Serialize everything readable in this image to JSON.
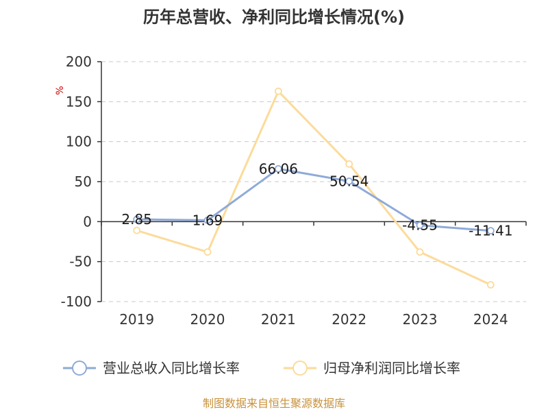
{
  "title": "历年总营收、净利同比增长情况(%)",
  "source": "制图数据来自恒生聚源数据库",
  "chart_data": {
    "type": "line",
    "title": "历年总营收、净利同比增长情况(%)",
    "ylabel": "%",
    "ylim": [
      -100,
      200
    ],
    "yticks": [
      200,
      150,
      100,
      50,
      0,
      -50,
      -100
    ],
    "grid": true,
    "legend_position": "bottom",
    "categories": [
      "2019",
      "2020",
      "2021",
      "2022",
      "2023",
      "2024"
    ],
    "series": [
      {
        "name": "营业总收入同比增长率",
        "color": "#8eaad8",
        "values": [
          2.85,
          1.69,
          66.06,
          50.54,
          -4.55,
          -11.41
        ],
        "labels": [
          "2.85",
          "1.69",
          "66.06",
          "50.54",
          "-4.55",
          "-11.41"
        ]
      },
      {
        "name": "归母净利润同比增长率",
        "color": "#fcdb9a",
        "values": [
          -11,
          -38,
          163,
          72,
          -38,
          -79
        ]
      }
    ]
  }
}
